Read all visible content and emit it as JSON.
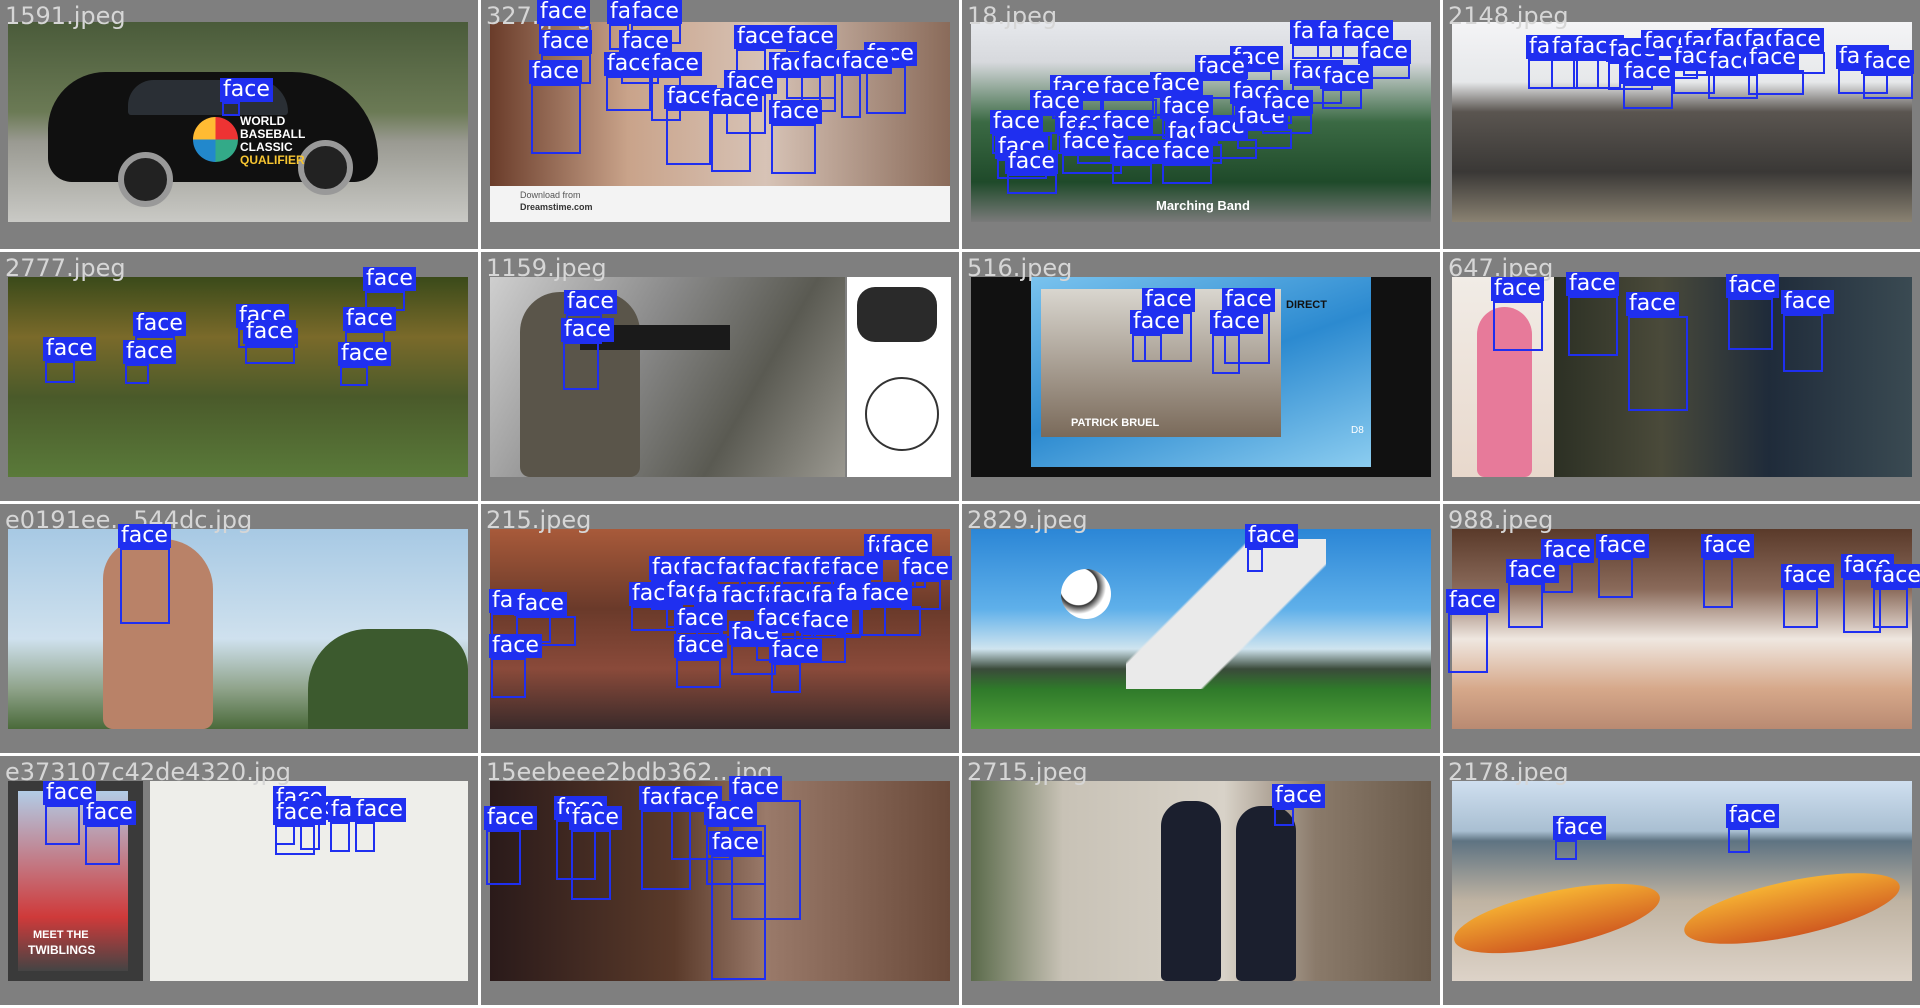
{
  "grid": {
    "tiles": [
      {
        "filename": "1591.jpeg",
        "label": "face",
        "text": [
          "WORLD",
          "BASEBALL",
          "CLASSIC",
          "QUALIFIER"
        ]
      },
      {
        "filename": "327.jpeg",
        "label": "face",
        "text": [
          "Download from",
          "Dreamstime.com"
        ]
      },
      {
        "filename": "18.jpeg",
        "label": "face",
        "text": [
          "Marching Band"
        ]
      },
      {
        "filename": "2148.jpeg",
        "label": "face"
      },
      {
        "filename": "2777.jpeg",
        "label": "face"
      },
      {
        "filename": "1159.jpeg",
        "label": "face"
      },
      {
        "filename": "516.jpeg",
        "label": "face",
        "text": [
          "DIRECT",
          "PATRICK BRUEL",
          "D8"
        ]
      },
      {
        "filename": "647.jpeg",
        "label": "face"
      },
      {
        "filename": "e0191ee...544dc.jpg",
        "label": "face"
      },
      {
        "filename": "215.jpeg",
        "label": "face"
      },
      {
        "filename": "2829.jpeg",
        "label": "face"
      },
      {
        "filename": "988.jpeg",
        "label": "face"
      },
      {
        "filename": "e373107c42de4320.jpg",
        "label": "face",
        "text": [
          "MEET THE",
          "TWIBLINGS"
        ]
      },
      {
        "filename": "15eebeee2bdb362...jpg",
        "label": "face"
      },
      {
        "filename": "2715.jpeg",
        "label": "face"
      },
      {
        "filename": "2178.jpeg",
        "label": "face"
      }
    ]
  },
  "colors": {
    "box": "#1f2ff0",
    "label_text": "#ffffff",
    "tile_background": "#7f7f7f"
  }
}
